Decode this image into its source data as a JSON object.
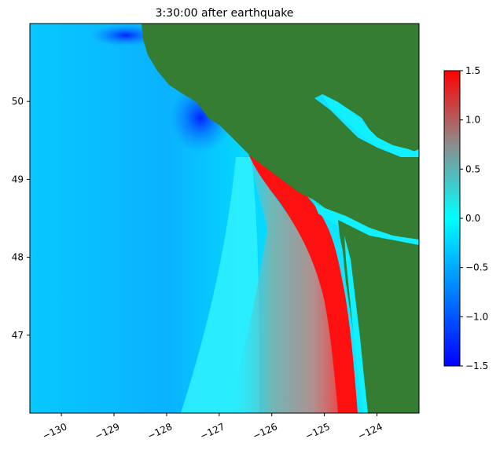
{
  "chart_data": {
    "type": "heatmap",
    "title": "3:30:00 after earthquake",
    "xlabel": "",
    "ylabel": "",
    "xlim": [
      -130.6,
      -123.2
    ],
    "ylim": [
      46.0,
      51.0
    ],
    "x_ticks": [
      -130,
      -129,
      -128,
      -127,
      -126,
      -125,
      -124
    ],
    "x_tick_labels": [
      "−130",
      "−129",
      "−128",
      "−127",
      "−126",
      "−125",
      "−124"
    ],
    "y_ticks": [
      47,
      48,
      49,
      50
    ],
    "y_tick_labels": [
      "47",
      "48",
      "49",
      "50"
    ],
    "colorbar": {
      "range": [
        -1.5,
        1.5
      ],
      "ticks": [
        -1.5,
        -1.0,
        -0.5,
        0.0,
        0.5,
        1.0,
        1.5
      ],
      "tick_labels": [
        "−1.5",
        "−1.0",
        "−0.5",
        "0.0",
        "0.5",
        "1.0",
        "1.5"
      ],
      "colors": [
        "#0000ff",
        "#00ffff",
        "#8c8c8c",
        "#ff0000"
      ]
    },
    "land_color": "#347d32",
    "grid": false
  }
}
